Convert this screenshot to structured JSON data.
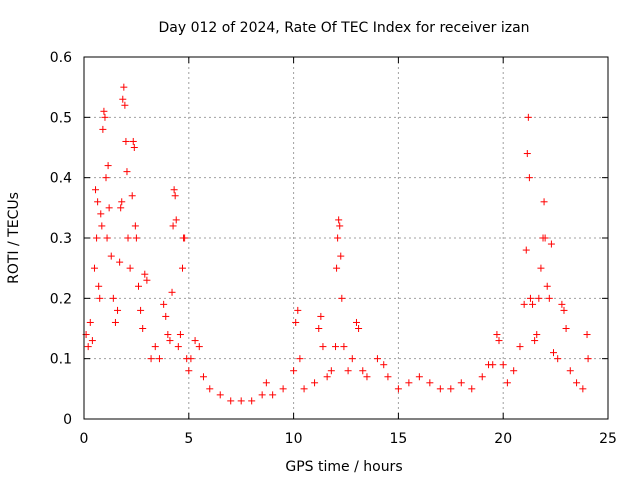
{
  "chart_data": {
    "type": "scatter",
    "title": "Day 012 of 2024, Rate Of TEC Index for receiver izan",
    "xlabel": "GPS time / hours",
    "ylabel": "ROTI / TECUs",
    "xlim": [
      0,
      25
    ],
    "ylim": [
      0,
      0.6
    ],
    "xticks": [
      "0",
      "5",
      "10",
      "15",
      "20",
      "25"
    ],
    "yticks": [
      "0",
      "0.1",
      "0.2",
      "0.3",
      "0.4",
      "0.5",
      "0.6"
    ],
    "grid": true,
    "marker": "+",
    "color": "#ff0000",
    "series": [
      {
        "points": [
          [
            0.1,
            0.14
          ],
          [
            0.2,
            0.12
          ],
          [
            0.3,
            0.16
          ],
          [
            0.4,
            0.13
          ],
          [
            0.5,
            0.25
          ],
          [
            0.55,
            0.38
          ],
          [
            0.6,
            0.3
          ],
          [
            0.65,
            0.36
          ],
          [
            0.7,
            0.22
          ],
          [
            0.75,
            0.2
          ],
          [
            0.8,
            0.34
          ],
          [
            0.85,
            0.32
          ],
          [
            0.9,
            0.48
          ],
          [
            0.95,
            0.51
          ],
          [
            1.0,
            0.5
          ],
          [
            1.05,
            0.4
          ],
          [
            1.1,
            0.3
          ],
          [
            1.15,
            0.42
          ],
          [
            1.2,
            0.35
          ],
          [
            1.3,
            0.27
          ],
          [
            1.4,
            0.2
          ],
          [
            1.5,
            0.16
          ],
          [
            1.6,
            0.18
          ],
          [
            1.7,
            0.26
          ],
          [
            1.75,
            0.35
          ],
          [
            1.8,
            0.36
          ],
          [
            1.85,
            0.53
          ],
          [
            1.9,
            0.55
          ],
          [
            1.95,
            0.52
          ],
          [
            2.0,
            0.46
          ],
          [
            2.05,
            0.41
          ],
          [
            2.1,
            0.3
          ],
          [
            2.2,
            0.25
          ],
          [
            2.3,
            0.37
          ],
          [
            2.35,
            0.46
          ],
          [
            2.4,
            0.45
          ],
          [
            2.45,
            0.32
          ],
          [
            2.5,
            0.3
          ],
          [
            2.6,
            0.22
          ],
          [
            2.7,
            0.18
          ],
          [
            2.8,
            0.15
          ],
          [
            2.9,
            0.24
          ],
          [
            3.0,
            0.23
          ],
          [
            3.2,
            0.1
          ],
          [
            3.4,
            0.12
          ],
          [
            3.6,
            0.1
          ],
          [
            3.8,
            0.19
          ],
          [
            3.9,
            0.17
          ],
          [
            4.0,
            0.14
          ],
          [
            4.1,
            0.13
          ],
          [
            4.2,
            0.21
          ],
          [
            4.25,
            0.32
          ],
          [
            4.3,
            0.38
          ],
          [
            4.35,
            0.37
          ],
          [
            4.4,
            0.33
          ],
          [
            4.5,
            0.12
          ],
          [
            4.6,
            0.14
          ],
          [
            4.7,
            0.25
          ],
          [
            4.75,
            0.3
          ],
          [
            4.8,
            0.3
          ],
          [
            4.9,
            0.1
          ],
          [
            5.0,
            0.08
          ],
          [
            5.1,
            0.1
          ],
          [
            5.3,
            0.13
          ],
          [
            5.5,
            0.12
          ],
          [
            5.7,
            0.07
          ],
          [
            6.0,
            0.05
          ],
          [
            6.5,
            0.04
          ],
          [
            7.0,
            0.03
          ],
          [
            7.5,
            0.03
          ],
          [
            8.0,
            0.03
          ],
          [
            8.5,
            0.04
          ],
          [
            8.7,
            0.06
          ],
          [
            9.0,
            0.04
          ],
          [
            9.5,
            0.05
          ],
          [
            10.0,
            0.08
          ],
          [
            10.1,
            0.16
          ],
          [
            10.2,
            0.18
          ],
          [
            10.3,
            0.1
          ],
          [
            10.5,
            0.05
          ],
          [
            11.0,
            0.06
          ],
          [
            11.2,
            0.15
          ],
          [
            11.3,
            0.17
          ],
          [
            11.4,
            0.12
          ],
          [
            11.6,
            0.07
          ],
          [
            11.8,
            0.08
          ],
          [
            12.0,
            0.12
          ],
          [
            12.05,
            0.25
          ],
          [
            12.1,
            0.3
          ],
          [
            12.15,
            0.33
          ],
          [
            12.2,
            0.32
          ],
          [
            12.25,
            0.27
          ],
          [
            12.3,
            0.2
          ],
          [
            12.4,
            0.12
          ],
          [
            12.6,
            0.08
          ],
          [
            12.8,
            0.1
          ],
          [
            13.0,
            0.16
          ],
          [
            13.1,
            0.15
          ],
          [
            13.3,
            0.08
          ],
          [
            13.5,
            0.07
          ],
          [
            14.0,
            0.1
          ],
          [
            14.3,
            0.09
          ],
          [
            14.5,
            0.07
          ],
          [
            15.0,
            0.05
          ],
          [
            15.5,
            0.06
          ],
          [
            16.0,
            0.07
          ],
          [
            16.5,
            0.06
          ],
          [
            17.0,
            0.05
          ],
          [
            17.5,
            0.05
          ],
          [
            18.0,
            0.06
          ],
          [
            18.5,
            0.05
          ],
          [
            19.0,
            0.07
          ],
          [
            19.3,
            0.09
          ],
          [
            19.5,
            0.09
          ],
          [
            19.7,
            0.14
          ],
          [
            19.8,
            0.13
          ],
          [
            20.0,
            0.09
          ],
          [
            20.2,
            0.06
          ],
          [
            20.5,
            0.08
          ],
          [
            20.8,
            0.12
          ],
          [
            21.0,
            0.19
          ],
          [
            21.1,
            0.28
          ],
          [
            21.15,
            0.44
          ],
          [
            21.2,
            0.5
          ],
          [
            21.25,
            0.4
          ],
          [
            21.3,
            0.2
          ],
          [
            21.4,
            0.19
          ],
          [
            21.5,
            0.13
          ],
          [
            21.6,
            0.14
          ],
          [
            21.7,
            0.2
          ],
          [
            21.8,
            0.25
          ],
          [
            21.9,
            0.3
          ],
          [
            21.95,
            0.36
          ],
          [
            22.0,
            0.3
          ],
          [
            22.1,
            0.22
          ],
          [
            22.2,
            0.2
          ],
          [
            22.3,
            0.29
          ],
          [
            22.4,
            0.11
          ],
          [
            22.6,
            0.1
          ],
          [
            22.8,
            0.19
          ],
          [
            22.9,
            0.18
          ],
          [
            23.0,
            0.15
          ],
          [
            23.2,
            0.08
          ],
          [
            23.5,
            0.06
          ],
          [
            23.8,
            0.05
          ],
          [
            24.0,
            0.14
          ],
          [
            24.05,
            0.1
          ]
        ]
      }
    ]
  }
}
